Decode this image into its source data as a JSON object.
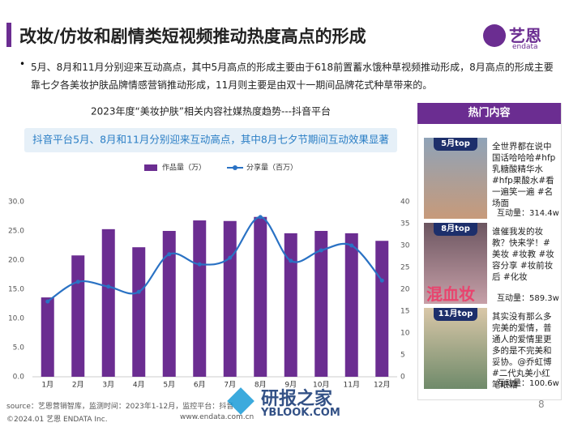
{
  "header": {
    "title": "改妆/仿妆和剧情类短视频推动热度高点的形成",
    "logo_cn": "艺恩",
    "logo_en": "endata"
  },
  "bullet": "5月、8月和11月分别迎来互动高点，其中5月高点的形成主要由于618前置蓄水饿种草视频推动形成，8月高点的形成主要靠七夕各美妆护肤品牌情感营销推动形成，11月则主要是由双十一期间品牌花式种草带来的。",
  "chart_data": {
    "type": "combo",
    "title": "2023年度“美妆护肤”相关内容社媒热度趋势---抖音平台",
    "subtitle": "抖音平台5月、8月和11月分别迎来互动高点，其中8月七夕节期间互动效果显著",
    "categories": [
      "1月",
      "2月",
      "3月",
      "4月",
      "5月",
      "6月",
      "7月",
      "8月",
      "9月",
      "10月",
      "11月",
      "12月"
    ],
    "series": [
      {
        "name": "作品量（万）",
        "type": "bar",
        "color": "#6b2d91",
        "values": [
          13.6,
          20.8,
          25.3,
          22.2,
          25.0,
          26.8,
          26.7,
          27.4,
          24.6,
          25.0,
          24.6,
          23.3
        ]
      },
      {
        "name": "分享量（百万）",
        "type": "line",
        "axis": "y2",
        "color": "#2a72c4",
        "values": [
          17.2,
          21.7,
          20.6,
          19.4,
          28.0,
          25.7,
          27.2,
          36.5,
          26.5,
          28.9,
          30.0,
          22.0
        ]
      }
    ],
    "ylim": [
      0,
      30
    ],
    "yticks": [
      {
        "value": 0,
        "label": "0.0"
      },
      {
        "value": 5,
        "label": "5.0"
      },
      {
        "value": 10,
        "label": "10.0"
      },
      {
        "value": 15,
        "label": "15.0"
      },
      {
        "value": 20,
        "label": "20.0"
      },
      {
        "value": 25,
        "label": "25.0"
      },
      {
        "value": 30,
        "label": "30.0"
      }
    ],
    "y2lim": [
      0,
      40
    ],
    "y2ticks": [
      0,
      5,
      10,
      15,
      20,
      25,
      30,
      35,
      40
    ],
    "legend": "top"
  },
  "panel": {
    "title": "热门内容",
    "items": [
      {
        "badge": "5月top",
        "text": "全世界都在说中国话哈哈哈#hfp乳糖酸精华水#hfp果酸水#看一遍笑一遍 #名场面",
        "interaction": "互动量：314.4w"
      },
      {
        "badge": "8月top",
        "overlay": "混血妆",
        "text": "谁催我发的妆教？快来学！#美妆 #妆教 #妆容分享 #妆前妆后 #化妆",
        "interaction": "互动量：589.3w"
      },
      {
        "badge": "11月top",
        "text": "其实没有那么多完美的爱情，普通人的爱情里更多的是不完美和妥协。@乔虹博#二代丸美小红笔眼霜",
        "interaction": "互动量：100.6w"
      }
    ]
  },
  "footer": {
    "source": "source：艺恩营销智库，监测时间：2023年1-12月，监控平台：抖音",
    "copyright": "©2024.01  艺恩 ENDATA Inc.",
    "url": "www.endata.com.cn",
    "page": "8"
  },
  "watermark": {
    "cn": "研报之家",
    "en": "YBLOOK.COM"
  }
}
